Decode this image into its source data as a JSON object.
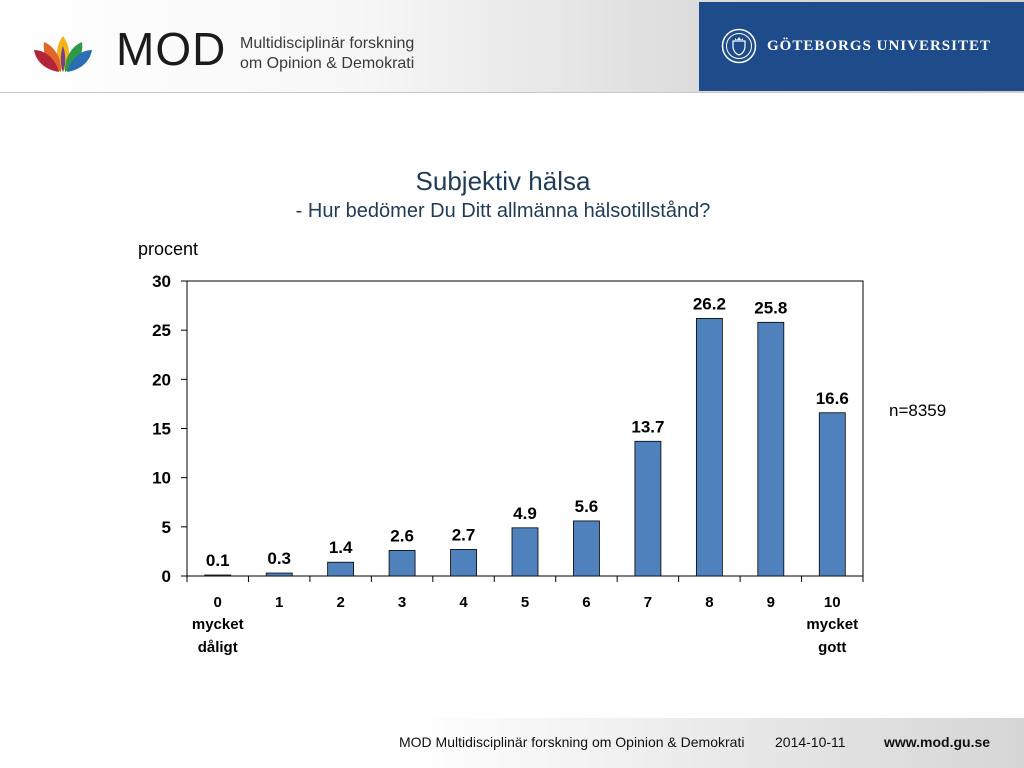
{
  "header": {
    "logo_text": "MOD",
    "logo_sub_line1": "Multidisciplinär forskning",
    "logo_sub_line2": "om Opinion & Demokrati",
    "university": "GÖTEBORGS UNIVERSITET"
  },
  "note": "n=8359",
  "footer": {
    "org": "MOD Multidisciplinär forskning om Opinion & Demokrati",
    "date": "2014-10-11",
    "url": "www.mod.gu.se"
  },
  "colors": {
    "bar": "#4f81bd",
    "bar_outline": "#000000",
    "gu_blue": "#1e4c8a",
    "title": "#1f3b57"
  },
  "chart_data": {
    "type": "bar",
    "title": "Subjektiv hälsa",
    "subtitle": "- Hur bedömer Du Ditt allmänna hälsotillstånd?",
    "ylabel": "procent",
    "xlabel": "",
    "categories": [
      "0",
      "1",
      "2",
      "3",
      "4",
      "5",
      "6",
      "7",
      "8",
      "9",
      "10"
    ],
    "category_sublabels": [
      [
        "mycket",
        "dåligt"
      ],
      [],
      [],
      [],
      [],
      [],
      [],
      [],
      [],
      [],
      [
        "mycket",
        "gott"
      ]
    ],
    "values": [
      0.1,
      0.3,
      1.4,
      2.6,
      2.7,
      4.9,
      5.6,
      13.7,
      26.2,
      25.8,
      16.6
    ],
    "value_labels": [
      "0.1",
      "0.3",
      "1.4",
      "2.6",
      "2.7",
      "4.9",
      "5.6",
      "13.7",
      "26.2",
      "25.8",
      "16.6"
    ],
    "ylim": [
      0,
      30
    ],
    "yticks": [
      0,
      5,
      10,
      15,
      20,
      25,
      30
    ],
    "grid": false,
    "legend": "none"
  }
}
